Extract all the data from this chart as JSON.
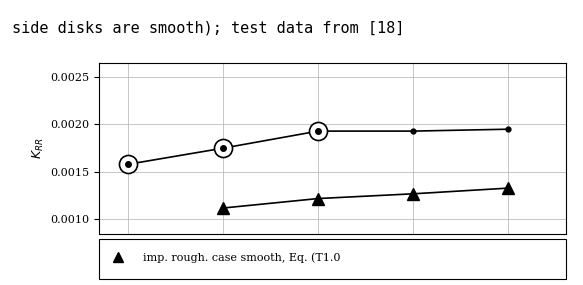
{
  "ylabel": "$K_{RR}$",
  "ylabel_plain": "KRR",
  "ylim": [
    0.00085,
    0.00265
  ],
  "yticks": [
    0.001,
    0.0015,
    0.002,
    0.0025
  ],
  "ytick_labels": [
    "0.0010",
    "0.0015",
    "0.0020",
    "0.0025"
  ],
  "line1_x": [
    0.0,
    1.0,
    2.0,
    3.0,
    4.0
  ],
  "line1_y": [
    0.00158,
    0.00175,
    0.00193,
    0.00193,
    0.00195
  ],
  "line2_x": [
    1.0,
    2.0,
    3.0,
    4.0
  ],
  "line2_y": [
    0.00112,
    0.00122,
    0.00127,
    0.00133
  ],
  "circle_indices": [
    0,
    1,
    2
  ],
  "xlim": [
    -0.3,
    4.6
  ],
  "xticks": [
    0,
    1,
    2,
    3,
    4
  ],
  "grid_color": "#bbbbbb",
  "line_color": "#000000",
  "bg_color": "#ffffff",
  "plot_bg": "#ffffff",
  "caption_text": "side disks are smooth); test data from [18]",
  "legend_text": "  imp. rough. case smooth, Eq. (T1.0",
  "caption_fontsize": 11,
  "tick_fontsize": 8,
  "ylabel_fontsize": 9
}
